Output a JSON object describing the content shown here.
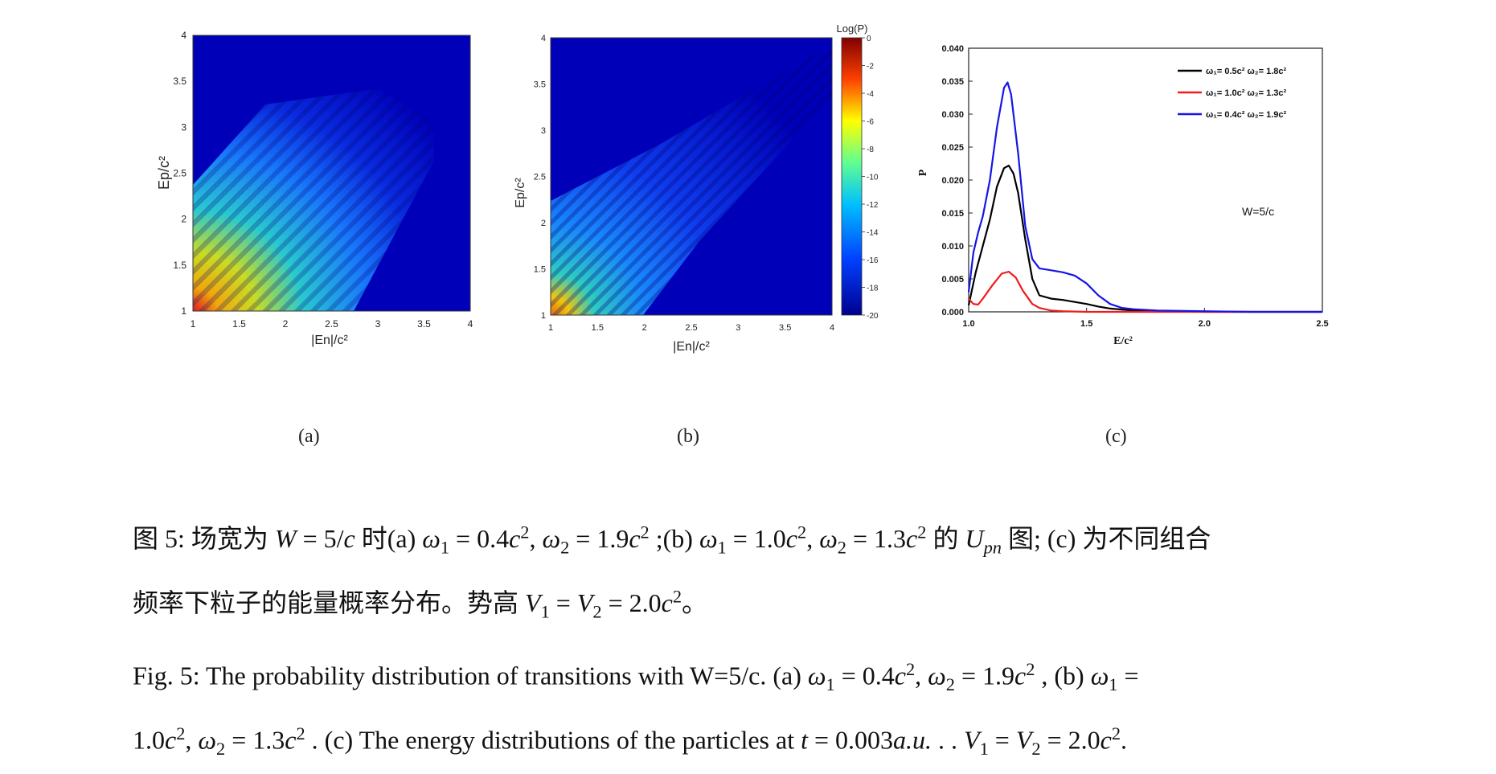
{
  "panels": {
    "a": {
      "label": "(a)",
      "xlabel": "|En|/c²",
      "ylabel": "Ep/c²",
      "xticks": [
        "1",
        "1.5",
        "2",
        "2.5",
        "3",
        "3.5",
        "4"
      ],
      "yticks": [
        "1",
        "1.5",
        "2",
        "2.5",
        "3",
        "3.5",
        "4"
      ]
    },
    "b": {
      "label": "(b)",
      "xlabel": "|En|/c²",
      "ylabel": "Ep/c²",
      "xticks": [
        "1",
        "1.5",
        "2",
        "2.5",
        "3",
        "3.5",
        "4"
      ],
      "yticks": [
        "1",
        "1.5",
        "2",
        "2.5",
        "3",
        "3.5",
        "4"
      ],
      "colorbar_title": "Log(P)",
      "colorbar_ticks": [
        "0",
        "-2",
        "-4",
        "-6",
        "-8",
        "-10",
        "-12",
        "-14",
        "-16",
        "-18",
        "-20"
      ]
    },
    "c": {
      "label": "(c)",
      "annotation": "W=5/c"
    }
  },
  "chart_data": [
    {
      "type": "heatmap",
      "xlabel": "|En|/c²",
      "ylabel": "Ep/c²",
      "xlim": [
        1,
        4
      ],
      "ylim": [
        1,
        4
      ]
    },
    {
      "type": "heatmap",
      "xlabel": "|En|/c²",
      "ylabel": "Ep/c²",
      "xlim": [
        1,
        4
      ],
      "ylim": [
        1,
        4
      ],
      "colorbar": {
        "title": "Log(P)",
        "range": [
          -20,
          0
        ]
      }
    },
    {
      "type": "line",
      "xlabel": "E/c²",
      "ylabel": "P",
      "xlim": [
        1.0,
        2.5
      ],
      "ylim": [
        0.0,
        0.04
      ],
      "xticks": [
        "1.0",
        "1.5",
        "2.0",
        "2.5"
      ],
      "yticks": [
        "0.000",
        "0.005",
        "0.010",
        "0.015",
        "0.020",
        "0.025",
        "0.030",
        "0.035",
        "0.040"
      ],
      "legend_position": "top-right",
      "series": [
        {
          "name": "ω₁= 0.5c² ω₂= 1.8c²",
          "color": "#000000",
          "x": [
            1.0,
            1.03,
            1.06,
            1.09,
            1.12,
            1.15,
            1.17,
            1.19,
            1.21,
            1.24,
            1.27,
            1.3,
            1.35,
            1.4,
            1.45,
            1.5,
            1.55,
            1.6,
            1.7,
            1.8,
            2.0,
            2.5
          ],
          "y": [
            0.001,
            0.006,
            0.01,
            0.014,
            0.019,
            0.0218,
            0.0222,
            0.021,
            0.018,
            0.011,
            0.005,
            0.0025,
            0.002,
            0.0018,
            0.0015,
            0.0012,
            0.0008,
            0.0005,
            0.0002,
            0.0001,
            0.0,
            0.0
          ]
        },
        {
          "name": "ω₁= 1.0c² ω₂= 1.3c²",
          "color": "#ee1c1c",
          "x": [
            1.0,
            1.02,
            1.04,
            1.06,
            1.1,
            1.14,
            1.17,
            1.2,
            1.23,
            1.27,
            1.3,
            1.35,
            1.4,
            1.5,
            1.7,
            2.0,
            2.5
          ],
          "y": [
            0.002,
            0.0012,
            0.0011,
            0.002,
            0.004,
            0.0058,
            0.0061,
            0.0052,
            0.0032,
            0.0012,
            0.0006,
            0.0002,
            0.0001,
            0.0,
            0.0,
            0.0,
            0.0
          ]
        },
        {
          "name": "ω₁= 0.4c² ω₂= 1.9c²",
          "color": "#1515e6",
          "x": [
            1.0,
            1.02,
            1.04,
            1.06,
            1.09,
            1.12,
            1.15,
            1.165,
            1.18,
            1.21,
            1.24,
            1.27,
            1.3,
            1.35,
            1.4,
            1.45,
            1.5,
            1.55,
            1.6,
            1.65,
            1.7,
            1.8,
            2.0,
            2.2,
            2.5
          ],
          "y": [
            0.003,
            0.009,
            0.012,
            0.0145,
            0.02,
            0.028,
            0.034,
            0.0348,
            0.033,
            0.024,
            0.013,
            0.008,
            0.0066,
            0.0063,
            0.006,
            0.0055,
            0.0043,
            0.0025,
            0.0012,
            0.0006,
            0.0004,
            0.0002,
            0.0001,
            0.0,
            0.0
          ]
        }
      ]
    }
  ],
  "caption_cn": {
    "line1_parts": [
      "图 5:  场宽为 ",
      "W",
      " = 5/",
      "c",
      " 时(a) ",
      "ω",
      "1",
      " = 0.4",
      "c",
      "2",
      ", ",
      "ω",
      "2",
      " = 1.9",
      "c",
      "2",
      " ;(b) ",
      "ω",
      "1",
      " = 1.0",
      "c",
      "2",
      ", ",
      "ω",
      "2",
      " = 1.3",
      "c",
      "2",
      " 的 ",
      "U",
      "pn",
      " 图;  (c) 为不同组合"
    ],
    "line2_parts": [
      "频率下粒子的能量概率分布。势高 ",
      "V",
      "1",
      " = ",
      "V",
      "2",
      " = 2.0",
      "c",
      "2",
      "。"
    ]
  },
  "caption_en": {
    "line1_parts": [
      "Fig. 5:  The probability distribution of transitions with W=5/c.  (a)  ",
      "ω",
      "1",
      " = 0.4",
      "c",
      "2",
      ", ",
      "ω",
      "2",
      " = 1.9",
      "c",
      "2",
      " , (b)  ",
      "ω",
      "1",
      " ="
    ],
    "line2_parts": [
      "1.0",
      "c",
      "2",
      ", ",
      "ω",
      "2",
      " = 1.3",
      "c",
      "2",
      " . (c) The energy distributions of the particles at ",
      "t",
      " = 0.003",
      "a.u.",
      " .  . ",
      "V",
      "1",
      " = ",
      "V",
      "2",
      " = 2.0",
      "c",
      "2",
      "."
    ]
  }
}
